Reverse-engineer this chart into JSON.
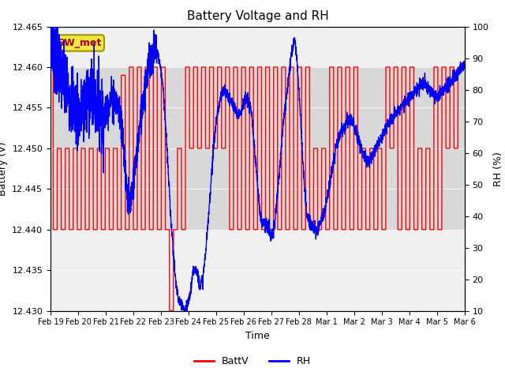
{
  "title": "Battery Voltage and RH",
  "xlabel": "Time",
  "ylabel_left": "Battery (V)",
  "ylabel_right": "RH (%)",
  "annotation": "SW_met",
  "ylim_left": [
    12.43,
    12.465
  ],
  "ylim_right": [
    10,
    100
  ],
  "yticks_left": [
    12.43,
    12.435,
    12.44,
    12.445,
    12.45,
    12.455,
    12.46,
    12.465
  ],
  "yticks_right": [
    10,
    20,
    30,
    40,
    50,
    60,
    70,
    80,
    90,
    100
  ],
  "xtick_labels": [
    "Feb 19",
    "Feb 20",
    "Feb 21",
    "Feb 22",
    "Feb 23",
    "Feb 24",
    "Feb 25",
    "Feb 26",
    "Feb 27",
    "Feb 28",
    "Mar 1",
    "Mar 2",
    "Mar 3",
    "Mar 4",
    "Mar 5",
    "Mar 6"
  ],
  "batt_color": "#ff0000",
  "rh_color": "#0000ff",
  "background_color": "#ffffff",
  "plot_bg_color": "#f0f0f0",
  "shaded_region": [
    12.44,
    12.46
  ],
  "shaded_color": "#d8d8d8",
  "legend_entries": [
    "BattV",
    "RH"
  ],
  "title_fontsize": 11,
  "axis_fontsize": 9,
  "tick_fontsize": 8,
  "annot_fontsize": 9,
  "figsize": [
    6.4,
    4.8
  ],
  "dpi": 100
}
